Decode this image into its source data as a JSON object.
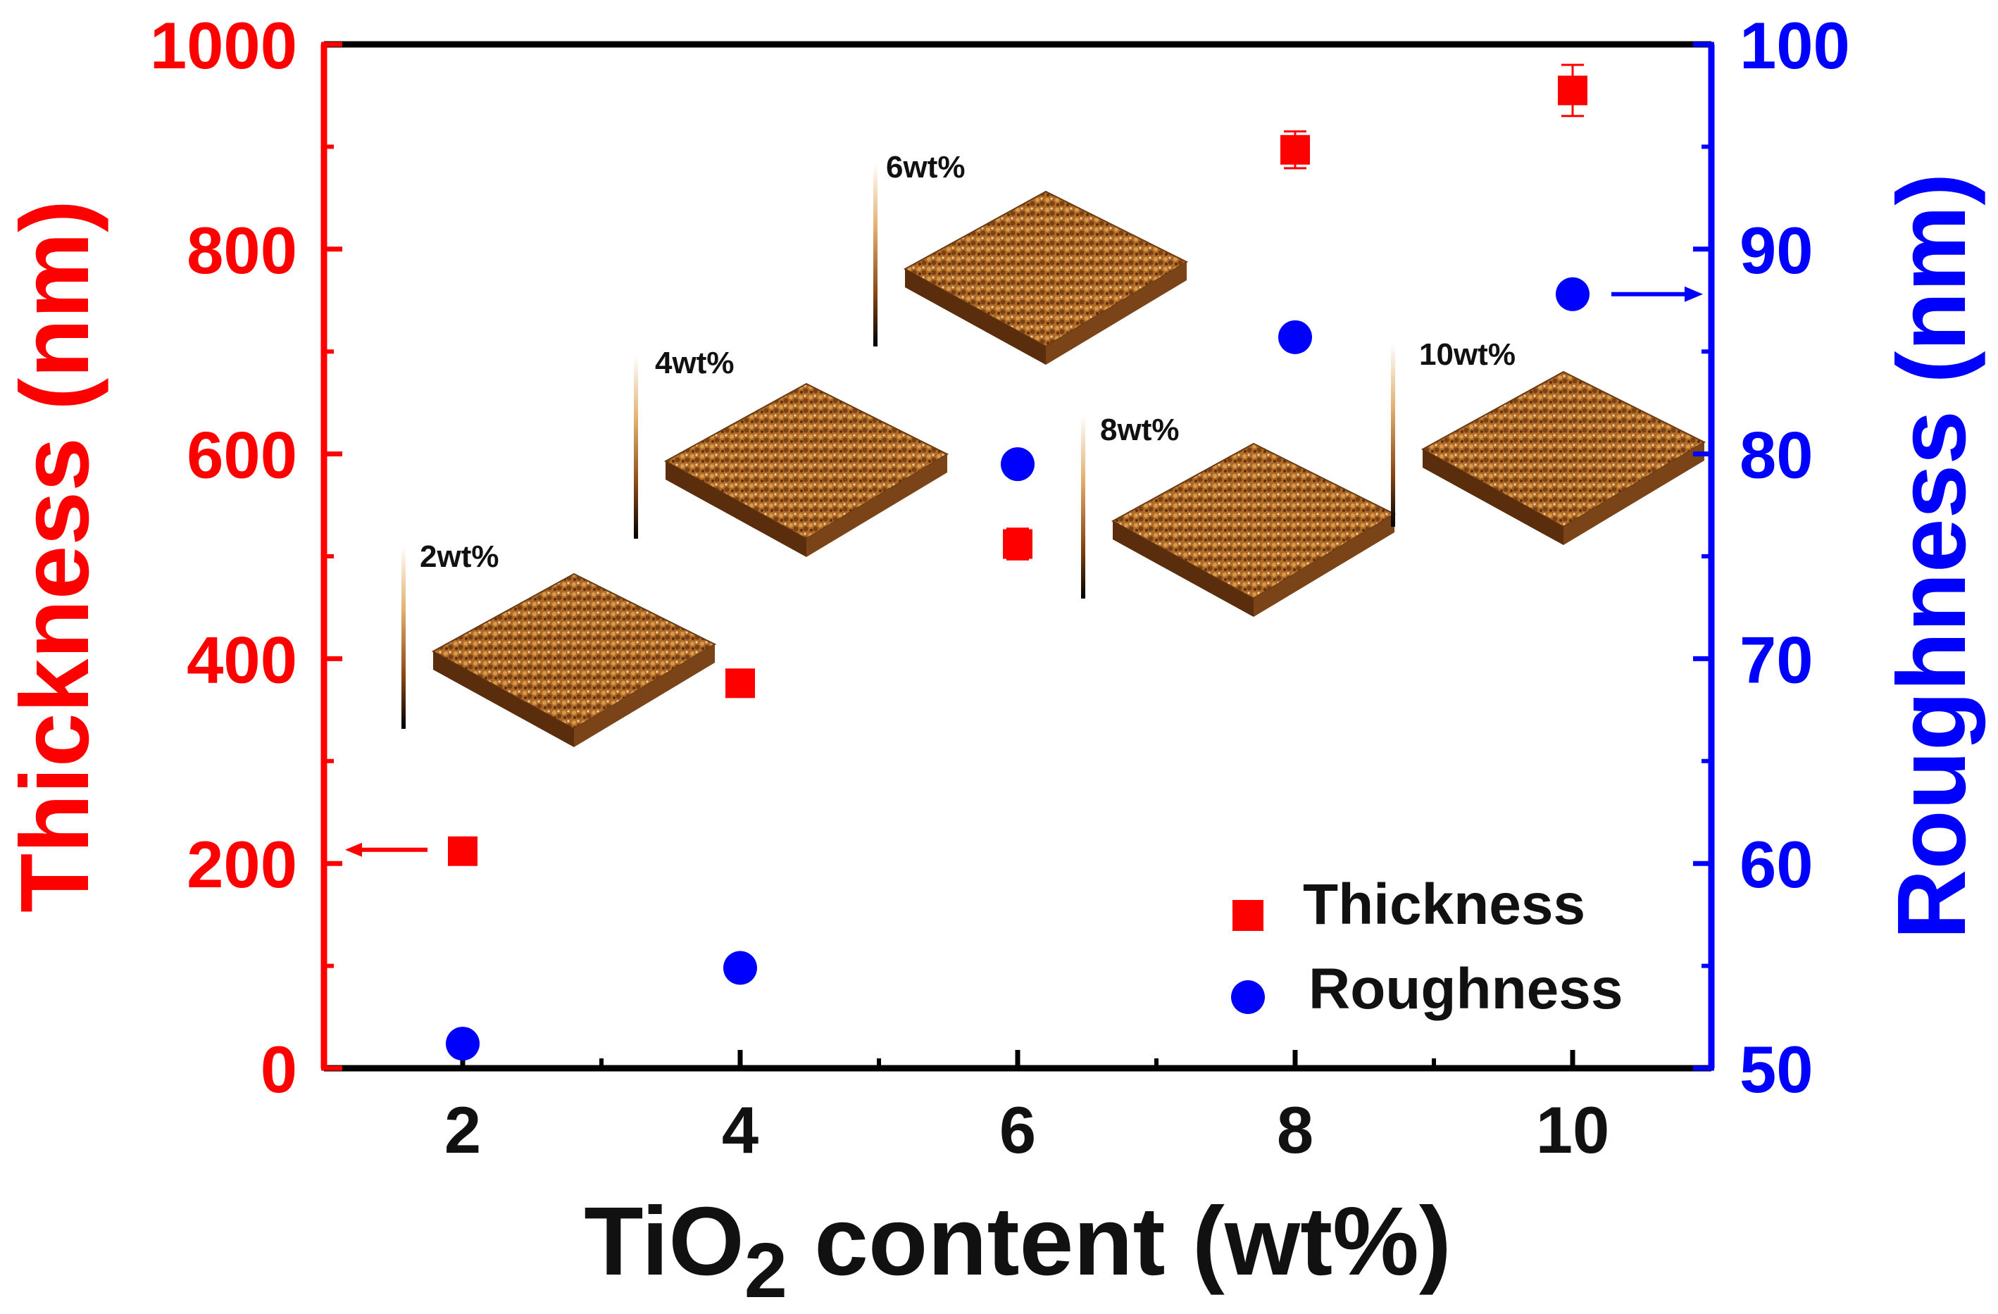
{
  "chart_data": {
    "type": "scatter",
    "title": "",
    "xlabel": "TiO",
    "xlabel_subscript": "2",
    "xlabel_suffix": " content (wt%)",
    "ylabel_left": "Thickness (nm)",
    "ylabel_right": "Roughness (nm)",
    "x_ticks": [
      2,
      4,
      6,
      8,
      10
    ],
    "xlim": [
      1,
      11
    ],
    "ylim_left": [
      0,
      1000
    ],
    "ylim_right": [
      50,
      100
    ],
    "y_ticks_left": [
      0,
      200,
      400,
      600,
      800,
      1000
    ],
    "y_ticks_right": [
      50,
      60,
      70,
      80,
      90,
      100
    ],
    "legend_position": "bottom-right",
    "series": [
      {
        "name": "Thickness",
        "axis": "left",
        "marker": "square",
        "color": "#ff0000",
        "x": [
          2,
          4,
          6,
          8,
          10
        ],
        "y": [
          212,
          376,
          512,
          897,
          955
        ],
        "yerr": [
          8,
          10,
          15,
          18,
          25
        ]
      },
      {
        "name": "Roughness",
        "axis": "right",
        "marker": "circle",
        "color": "#0000ff",
        "x": [
          2,
          4,
          6,
          8,
          10
        ],
        "y": [
          51.2,
          54.9,
          79.5,
          85.7,
          87.8
        ]
      }
    ],
    "insets": [
      {
        "label": "2wt%"
      },
      {
        "label": "4wt%"
      },
      {
        "label": "6wt%"
      },
      {
        "label": "8wt%"
      },
      {
        "label": "10wt%"
      }
    ]
  }
}
